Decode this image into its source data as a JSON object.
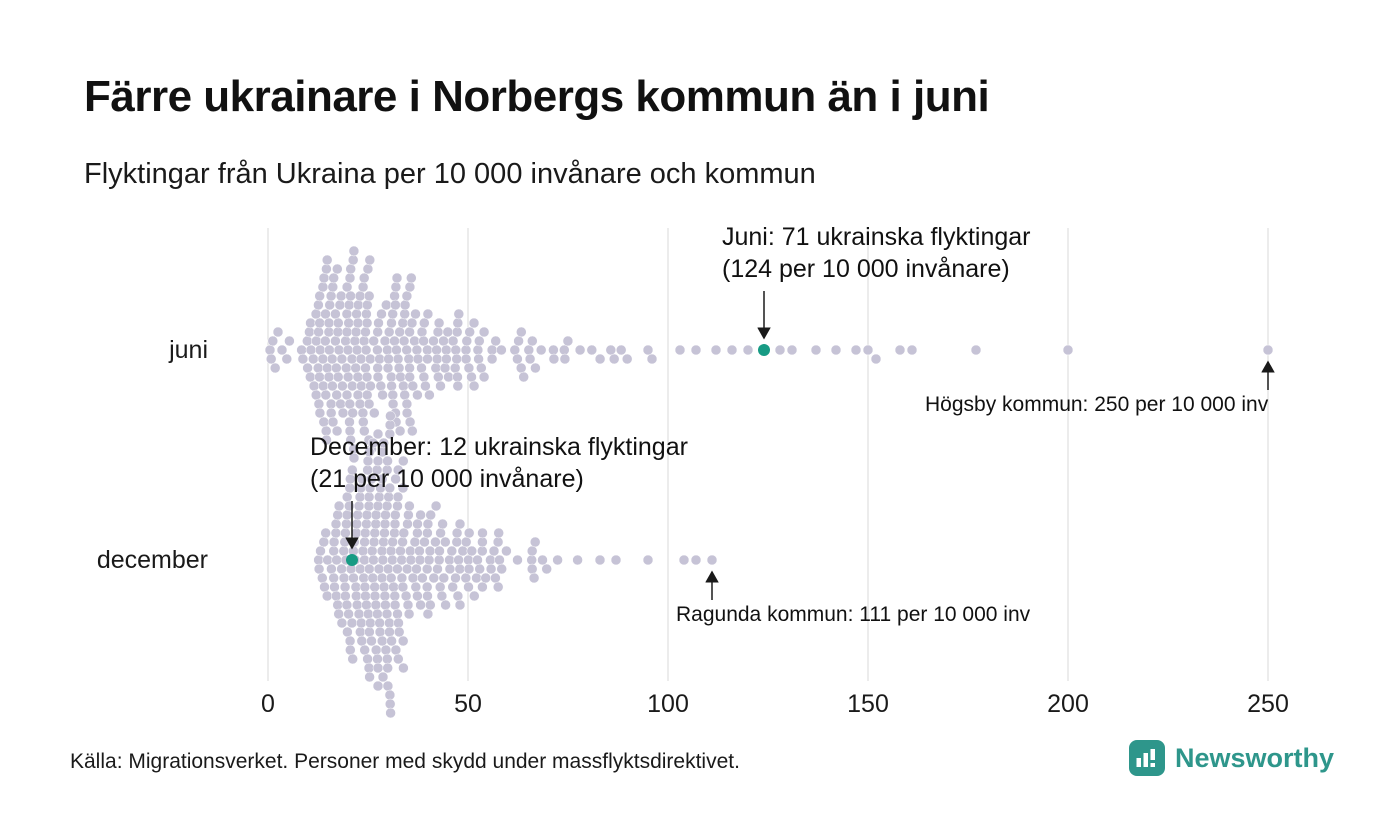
{
  "colors": {
    "dot": "#c6c3d6",
    "highlight": "#179b84",
    "grid": "#d9d9d9",
    "text": "#1a1a1a",
    "arrow": "#1a1a1a",
    "brand": "#2e968b"
  },
  "footer": {
    "brand": "Newsworthy"
  },
  "chart_data": {
    "type": "beeswarm",
    "title": "Färre ukrainare i Norbergs kommun än i juni",
    "subtitle": "Flyktingar från Ukraina per 10 000 invånare och kommun",
    "source": "Källa: Migrationsverket. Personer med skydd under massflyktsdirektivet.",
    "unit": "flyktingar per 10 000 invånare och kommun",
    "xticks": [
      0,
      50,
      100,
      150,
      200,
      250
    ],
    "xlim": [
      0,
      255
    ],
    "grid": true,
    "rows": [
      {
        "label": "juni",
        "n": 260,
        "seed": 42,
        "mu": 3.35,
        "sigma": 0.55,
        "clip_min": 0.4,
        "clip_max": 100,
        "extra_values": [
          0.5,
          0.8,
          1.2,
          1.8,
          2.5,
          3.5,
          95,
          96,
          103,
          107,
          112,
          116,
          120,
          128,
          131,
          137,
          142,
          147,
          150,
          152,
          158,
          161,
          177,
          200
        ],
        "highlight": {
          "value": 124,
          "label_line1": "Juni: 71 ukrainska flyktingar",
          "label_line2": "(124 per 10 000 invånare)"
        },
        "max_annotation": {
          "value": 250,
          "text": "Högsby kommun: 250 per 10 000 inv"
        }
      },
      {
        "label": "december",
        "n": 275,
        "seed": 7,
        "mu": 3.45,
        "sigma": 0.4,
        "clip_min": 3,
        "clip_max": 80,
        "extra_values": [
          83,
          87,
          95,
          104,
          107
        ],
        "highlight": {
          "value": 21,
          "label_line1": "December: 12 ukrainska flyktingar",
          "label_line2": "(21 per 10 000 invånare)"
        },
        "max_annotation": {
          "value": 111,
          "text": "Ragunda kommun: 111 per 10 000 inv"
        }
      }
    ]
  }
}
